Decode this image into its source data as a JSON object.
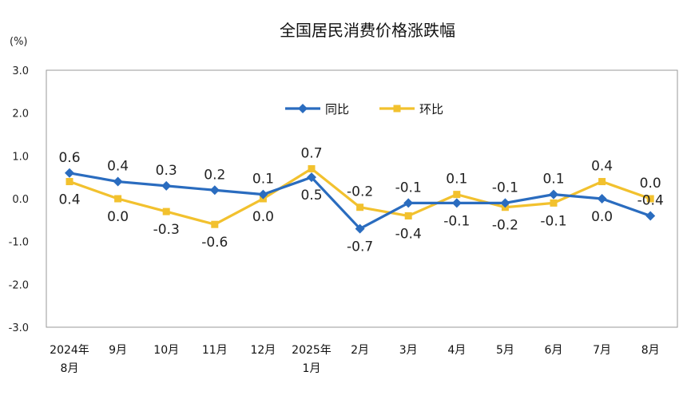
{
  "chart_data": {
    "type": "line",
    "title": "全国居民消费价格涨跌幅",
    "unit": "(%)",
    "ylim": [
      -3.0,
      3.0
    ],
    "yticks": [
      "3.0",
      "2.0",
      "1.0",
      "0.0",
      "-1.0",
      "-2.0",
      "-3.0"
    ],
    "categories": [
      [
        "2024年",
        "8月"
      ],
      [
        "9月"
      ],
      [
        "10月"
      ],
      [
        "11月"
      ],
      [
        "12月"
      ],
      [
        "2025年",
        "1月"
      ],
      [
        "2月"
      ],
      [
        "3月"
      ],
      [
        "4月"
      ],
      [
        "5月"
      ],
      [
        "6月"
      ],
      [
        "7月"
      ],
      [
        "8月"
      ]
    ],
    "grid": false,
    "legend_position": "top",
    "series": [
      {
        "name": "同比",
        "color": "#2a6cbf",
        "marker": "diamond",
        "values": [
          0.6,
          0.4,
          0.3,
          0.2,
          0.1,
          0.5,
          -0.7,
          -0.1,
          -0.1,
          -0.1,
          0.1,
          0.0,
          -0.4
        ],
        "labels": [
          "0.6",
          "0.4",
          "0.3",
          "0.2",
          "0.1",
          "0.5",
          "-0.7",
          "-0.1",
          "-0.1",
          "-0.1",
          "0.1",
          "0.0",
          "-0.4"
        ]
      },
      {
        "name": "环比",
        "color": "#f2c12e",
        "marker": "square",
        "values": [
          0.4,
          0.0,
          -0.3,
          -0.6,
          0.0,
          0.7,
          -0.2,
          -0.4,
          0.1,
          -0.2,
          -0.1,
          0.4,
          0.0
        ],
        "labels": [
          "0.4",
          "0.0",
          "-0.3",
          "-0.6",
          "0.0",
          "0.7",
          "-0.2",
          "-0.4",
          "0.1",
          "-0.2",
          "-0.1",
          "0.4",
          "0.0"
        ]
      }
    ]
  }
}
